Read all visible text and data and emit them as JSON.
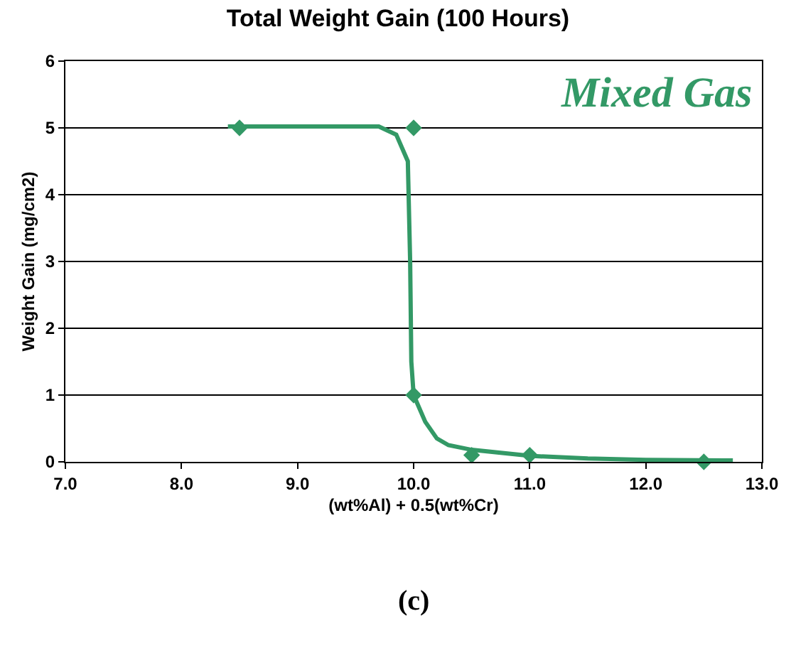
{
  "chart_data": {
    "type": "scatter",
    "title": "Total Weight Gain (100 Hours)",
    "xlabel": "(wt%Al) + 0.5(wt%Cr)",
    "ylabel": "Weight Gain (mg/cm2)",
    "xlim": [
      7.0,
      13.0
    ],
    "xticks": [
      {
        "value": 7,
        "label": "7.0"
      },
      {
        "value": 8,
        "label": "8.0"
      },
      {
        "value": 9,
        "label": "9.0"
      },
      {
        "value": 10,
        "label": "10.0"
      },
      {
        "value": 11,
        "label": "11.0"
      },
      {
        "value": 12,
        "label": "12.0"
      },
      {
        "value": 13,
        "label": "13.0"
      }
    ],
    "ylim": [
      0,
      6
    ],
    "yticks": [
      0,
      1,
      2,
      3,
      4,
      5,
      6
    ],
    "grid": "y",
    "series": [
      {
        "type": "line",
        "color": "#339966",
        "marker": "none",
        "line_style": "solid",
        "x": [
          8.4,
          9.7,
          9.85,
          9.95,
          9.97,
          9.98,
          10.0,
          10.1,
          10.2,
          10.3,
          10.5,
          11.0,
          11.5,
          12.0,
          12.75
        ],
        "values": [
          5.02,
          5.02,
          4.9,
          4.5,
          3.0,
          1.5,
          1.0,
          0.6,
          0.35,
          0.25,
          0.18,
          0.09,
          0.05,
          0.03,
          0.02
        ]
      },
      {
        "color": "#339966",
        "marker": "diamond",
        "x": [
          8.5,
          10.0,
          10.0,
          10.5,
          11.0,
          12.5
        ],
        "values": [
          5.0,
          5.0,
          1.0,
          0.1,
          0.1,
          0.0
        ]
      }
    ],
    "annotations": [
      "Mixed Gas",
      "(c)"
    ]
  }
}
